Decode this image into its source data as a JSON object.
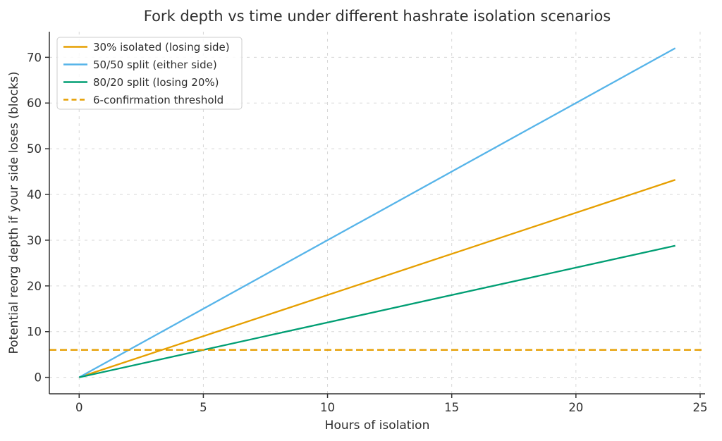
{
  "chart_data": {
    "type": "line",
    "title": "Fork depth vs time under different hashrate isolation scenarios",
    "xlabel": "Hours of isolation",
    "ylabel": "Potential reorg depth if your side loses (blocks)",
    "xlim": [
      -1.2,
      25.2
    ],
    "ylim": [
      -3.6,
      75.6
    ],
    "x_ticks": [
      0,
      5,
      10,
      15,
      20,
      25
    ],
    "y_ticks": [
      0,
      10,
      20,
      30,
      40,
      50,
      60,
      70
    ],
    "grid": true,
    "grid_style": "dashed",
    "legend_position": "upper-left",
    "series": [
      {
        "name": "30% isolated (losing side)",
        "color": "#E69F00",
        "style": "solid",
        "x": [
          0,
          24
        ],
        "y": [
          0,
          43.2
        ],
        "slope_blocks_per_hour": 1.8
      },
      {
        "name": "50/50 split (either side)",
        "color": "#56B4E9",
        "style": "solid",
        "x": [
          0,
          24
        ],
        "y": [
          0,
          72
        ],
        "slope_blocks_per_hour": 3.0
      },
      {
        "name": "80/20 split (losing 20%)",
        "color": "#009E73",
        "style": "solid",
        "x": [
          0,
          24
        ],
        "y": [
          0,
          28.8
        ],
        "slope_blocks_per_hour": 1.2
      },
      {
        "name": "6-confirmation threshold",
        "color": "#E69F00",
        "style": "dashed",
        "x": [
          -1.2,
          25.2
        ],
        "y": [
          6,
          6
        ],
        "threshold_value": 6
      }
    ],
    "colors": {
      "grid": "#d7d7d7",
      "spine": "#333333",
      "text": "#2e2e2e",
      "legend_border": "#cccccc",
      "legend_bg": "#ffffff"
    }
  }
}
